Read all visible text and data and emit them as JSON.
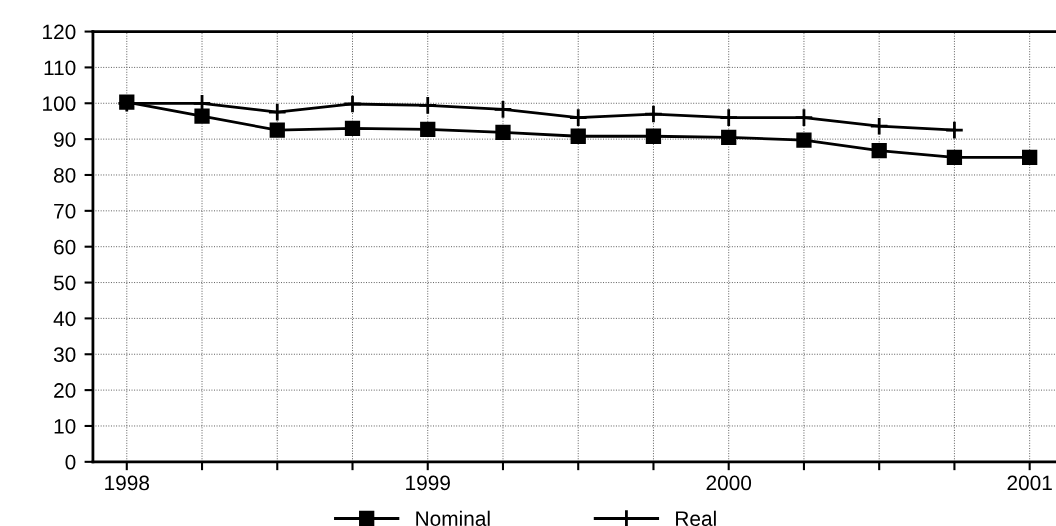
{
  "chart_data": {
    "type": "line",
    "categories": [
      "1998",
      null,
      null,
      null,
      "1999",
      null,
      null,
      null,
      "2000",
      null,
      null,
      null,
      "2001"
    ],
    "series": [
      {
        "name": "Nominal",
        "color": "#000000",
        "marker": "square",
        "values": [
          100.3,
          96.4,
          92.5,
          93,
          92.7,
          91.9,
          90.8,
          90.8,
          90.5,
          89.7,
          86.8,
          84.9,
          84.9
        ]
      },
      {
        "name": "Real",
        "color": "#000000",
        "marker": "cross",
        "values": [
          100,
          100,
          97.5,
          99.8,
          99.4,
          98.3,
          96,
          97,
          96,
          96,
          93.6,
          92.5,
          null
        ]
      }
    ],
    "ylim": [
      0,
      120
    ],
    "yticks": [
      0,
      10,
      20,
      30,
      40,
      50,
      60,
      70,
      80,
      90,
      100,
      110,
      120
    ],
    "grid": true,
    "legend": "bottom",
    "line_style": "solid"
  }
}
